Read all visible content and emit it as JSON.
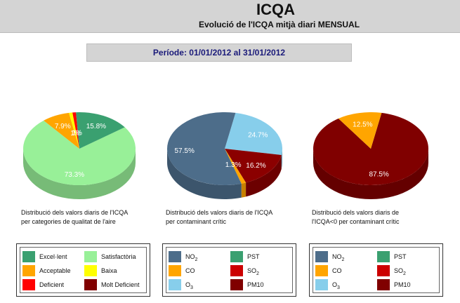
{
  "header": {
    "title": "ICQA",
    "subtitle": "Evolució de l'ICQA mitjà diari MENSUAL"
  },
  "period": "Període: 01/01/2012 al 31/01/2012",
  "captions": {
    "chart1_line1": "Distribució dels valors diaris de l'ICQA",
    "chart1_line2": "per categories de qualitat de l'aire",
    "chart2_line1": "Distribució dels valors diaris de l'ICQA",
    "chart2_line2": "per contaminant crític",
    "chart3_line1": "Distribució dels valors diaris de",
    "chart3_line2": "l'ICQA<0 per contaminant crític"
  },
  "legend_quality": [
    {
      "label": "Excel·lent",
      "color": "#3aa070"
    },
    {
      "label": "Satisfactòria",
      "color": "#98f098"
    },
    {
      "label": "Acceptable",
      "color": "#ffa500"
    },
    {
      "label": "Baixa",
      "color": "#ffff00"
    },
    {
      "label": "Deficient",
      "color": "#ff0000"
    },
    {
      "label": "Molt Deficient",
      "color": "#800000"
    }
  ],
  "legend_pollutants": [
    {
      "label": "NO",
      "sub": "2",
      "color": "#4d6d8a"
    },
    {
      "label": "PST",
      "sub": "",
      "color": "#3aa070"
    },
    {
      "label": "CO",
      "sub": "",
      "color": "#ffa500"
    },
    {
      "label": "SO",
      "sub": "2",
      "color": "#cc0000"
    },
    {
      "label": "O",
      "sub": "3",
      "color": "#87ceeb"
    },
    {
      "label": "PM10",
      "sub": "",
      "color": "#800000"
    }
  ],
  "chart_data": [
    {
      "type": "pie",
      "slices": [
        {
          "label": "73.3%",
          "value": 73.3,
          "color": "#98f098"
        },
        {
          "label": "7.9%",
          "value": 7.9,
          "color": "#ffa500"
        },
        {
          "label": "1%",
          "value": 1.0,
          "color": "#ffff00"
        },
        {
          "label": "1%",
          "value": 1.0,
          "color": "#ff0000"
        },
        {
          "label": "15.8%",
          "value": 15.8,
          "color": "#3aa070"
        }
      ]
    },
    {
      "type": "pie",
      "slices": [
        {
          "label": "24.7%",
          "value": 24.7,
          "color": "#87ceeb"
        },
        {
          "label": "16.2%",
          "value": 16.2,
          "color": "#8b0000"
        },
        {
          "label": "1.3%",
          "value": 1.3,
          "color": "#ffa500"
        },
        {
          "label": "57.5%",
          "value": 57.5,
          "color": "#4d6d8a"
        }
      ]
    },
    {
      "type": "pie",
      "slices": [
        {
          "label": "87.5%",
          "value": 87.5,
          "color": "#800000"
        },
        {
          "label": "12.5%",
          "value": 12.5,
          "color": "#ffa500"
        }
      ]
    }
  ]
}
